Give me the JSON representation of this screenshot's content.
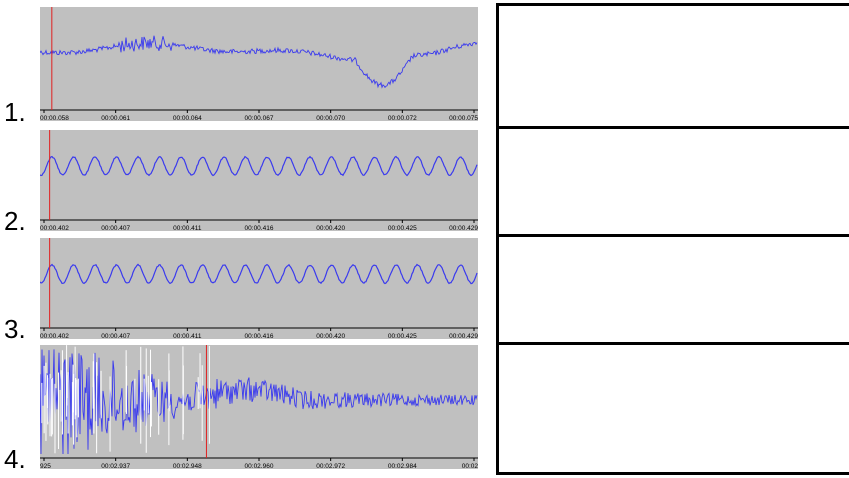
{
  "colors": {
    "panel_bg": "#c0c0c0",
    "waveform": "#3a3aee",
    "cursor": "#e02020",
    "axis": "#000000"
  },
  "panels": [
    {
      "number": "1.",
      "wave": "noisy-drift",
      "cursor_fraction": 0.027,
      "ticks": [
        "00:00.058",
        "00:00.061",
        "00:00.064",
        "00:00.067",
        "00:00.070",
        "00:00.072",
        "00:00.075"
      ],
      "tick_style": "spread-full"
    },
    {
      "number": "2.",
      "wave": "sine",
      "cursor_fraction": 0.022,
      "ticks": [
        "00:00.402",
        "00:00.407",
        "00:00.411",
        "00:00.416",
        "00:00.420",
        "00:00.425",
        "00:00.429"
      ],
      "tick_style": "spread-full"
    },
    {
      "number": "3.",
      "wave": "sine",
      "cursor_fraction": 0.022,
      "ticks": [
        "00:00.402",
        "00:00.407",
        "00:00.411",
        "00:00.416",
        "00:00.420",
        "00:00.425",
        "00:00.429"
      ],
      "tick_style": "spread-full"
    },
    {
      "number": "4.",
      "wave": "transient-decay",
      "cursor_fraction": 0.38,
      "ticks": [
        "925",
        "00:02.937",
        "00:02.948",
        "00:02.960",
        "00:02.972",
        "00:02.984",
        "00:02"
      ],
      "tick_style": "spread-full"
    }
  ],
  "table_rows": [
    {
      "text": ""
    },
    {
      "text": ""
    },
    {
      "text": ""
    },
    {
      "text": ""
    }
  ]
}
